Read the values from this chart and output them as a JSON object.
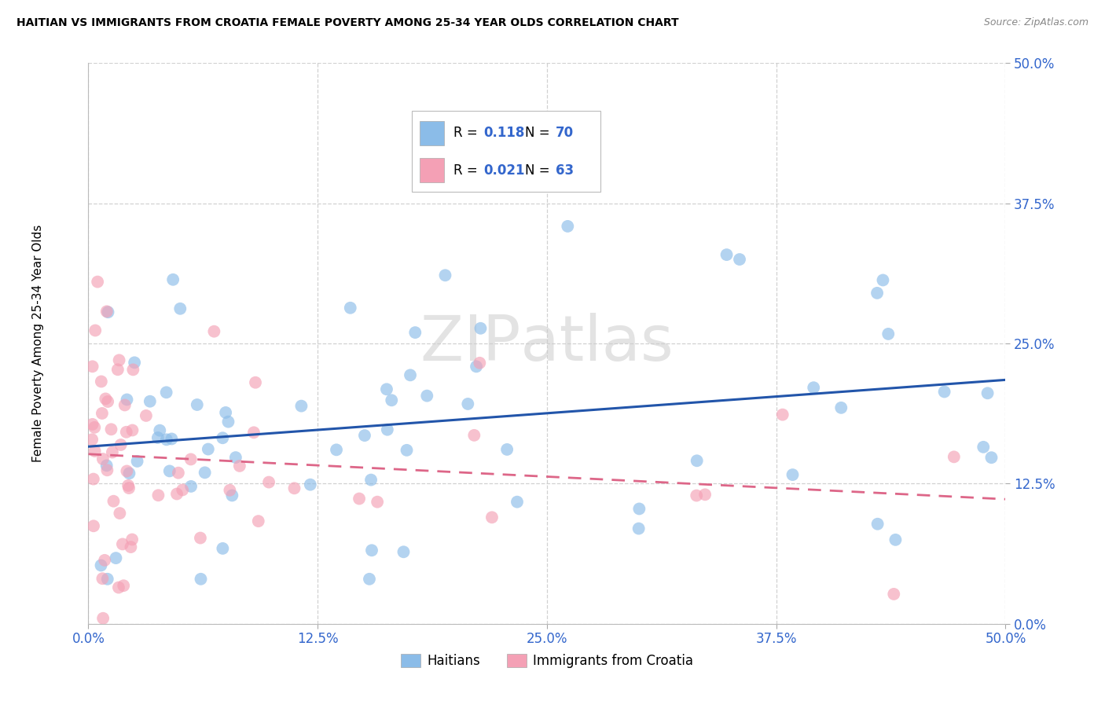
{
  "title": "HAITIAN VS IMMIGRANTS FROM CROATIA FEMALE POVERTY AMONG 25-34 YEAR OLDS CORRELATION CHART",
  "source": "Source: ZipAtlas.com",
  "ylabel": "Female Poverty Among 25-34 Year Olds",
  "xlim": [
    0.0,
    0.5
  ],
  "ylim": [
    0.0,
    0.5
  ],
  "xtick_values": [
    0.0,
    0.125,
    0.25,
    0.375,
    0.5
  ],
  "ytick_values": [
    0.0,
    0.125,
    0.25,
    0.375,
    0.5
  ],
  "legend_labels": [
    "Haitians",
    "Immigrants from Croatia"
  ],
  "haitian_color": "#8BBCE8",
  "croatia_color": "#F4A0B5",
  "haitian_line_color": "#2255AA",
  "croatia_line_color": "#DD6688",
  "R_haitian": "0.118",
  "N_haitian": "70",
  "R_croatia": "0.021",
  "N_croatia": "63",
  "watermark": "ZIPAtlas"
}
